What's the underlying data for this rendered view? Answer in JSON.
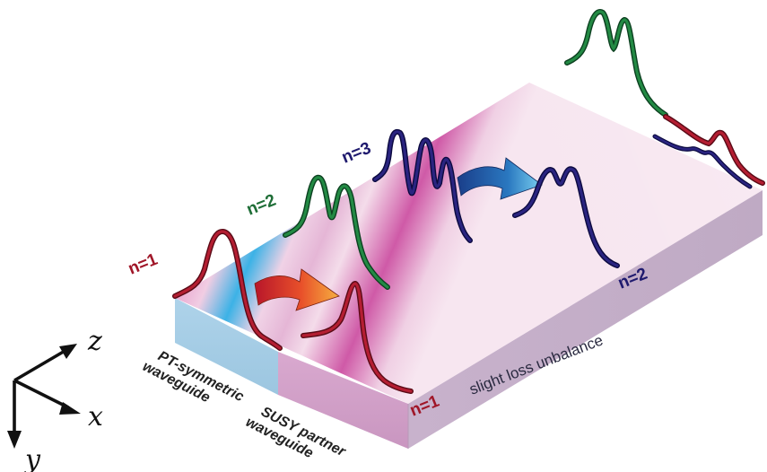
{
  "colors": {
    "mode1": "#a01628",
    "mode2": "#1f6e37",
    "mode3": "#1f1a6e",
    "pink": "#d060a8",
    "blue": "#2aa6e0",
    "slab_front_left": "#a8cfe6",
    "slab_front_right": "#d6a8cc",
    "slab_side": "#c8b4cc"
  },
  "labels": {
    "n1_left": "n=1",
    "n2_left": "n=2",
    "n3_left": "n=3",
    "n2_right": "n=2",
    "n1_right": "n=1",
    "pt_waveguide": "PT-symmetric",
    "pt_waveguide_2": "waveguide",
    "susy_waveguide": "SUSY partner",
    "susy_waveguide_2": "waveguide",
    "side_text": "slight loss unbalance"
  },
  "axes": {
    "z": "z",
    "x": "x",
    "y": "y"
  },
  "icons": {
    "arrow_1": "gradient-arrow-red-orange",
    "arrow_2": "gradient-arrow-blue"
  }
}
